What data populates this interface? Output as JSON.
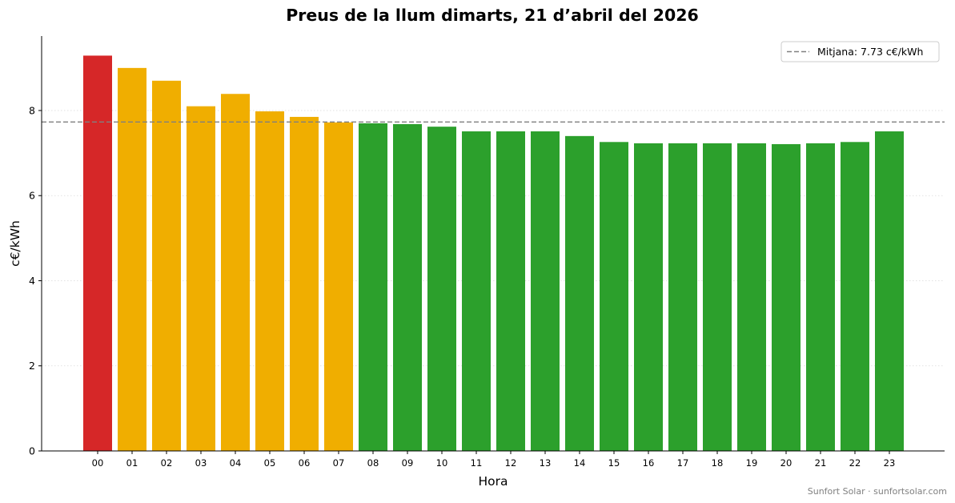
{
  "chart_data": {
    "type": "bar",
    "title": "Preus de la llum dimarts, 21 d’abril del 2026",
    "xlabel": "Hora",
    "ylabel": "c€/kWh",
    "categories": [
      "00",
      "01",
      "02",
      "03",
      "04",
      "05",
      "06",
      "07",
      "08",
      "09",
      "10",
      "11",
      "12",
      "13",
      "14",
      "15",
      "16",
      "17",
      "18",
      "19",
      "20",
      "21",
      "22",
      "23"
    ],
    "values": [
      9.29,
      9.0,
      8.7,
      8.1,
      8.39,
      7.98,
      7.85,
      7.72,
      7.7,
      7.68,
      7.62,
      7.51,
      7.51,
      7.51,
      7.4,
      7.26,
      7.23,
      7.23,
      7.23,
      7.23,
      7.21,
      7.23,
      7.26,
      7.51
    ],
    "bar_colors": [
      "#d62728",
      "#f0ae00",
      "#f0ae00",
      "#f0ae00",
      "#f0ae00",
      "#f0ae00",
      "#f0ae00",
      "#f0ae00",
      "#2ca02c",
      "#2ca02c",
      "#2ca02c",
      "#2ca02c",
      "#2ca02c",
      "#2ca02c",
      "#2ca02c",
      "#2ca02c",
      "#2ca02c",
      "#2ca02c",
      "#2ca02c",
      "#2ca02c",
      "#2ca02c",
      "#2ca02c",
      "#2ca02c",
      "#2ca02c"
    ],
    "ylim": [
      0,
      9.75
    ],
    "yticks": [
      0,
      2,
      4,
      6,
      8
    ],
    "average": {
      "value": 7.73,
      "label": "Mitjana: 7.73 c€/kWh",
      "color": "#808080",
      "style": "dashed"
    },
    "legend_position": "top-right",
    "grid": "horizontal dotted",
    "credit": "Sunfort Solar · sunfortsolar.com"
  }
}
